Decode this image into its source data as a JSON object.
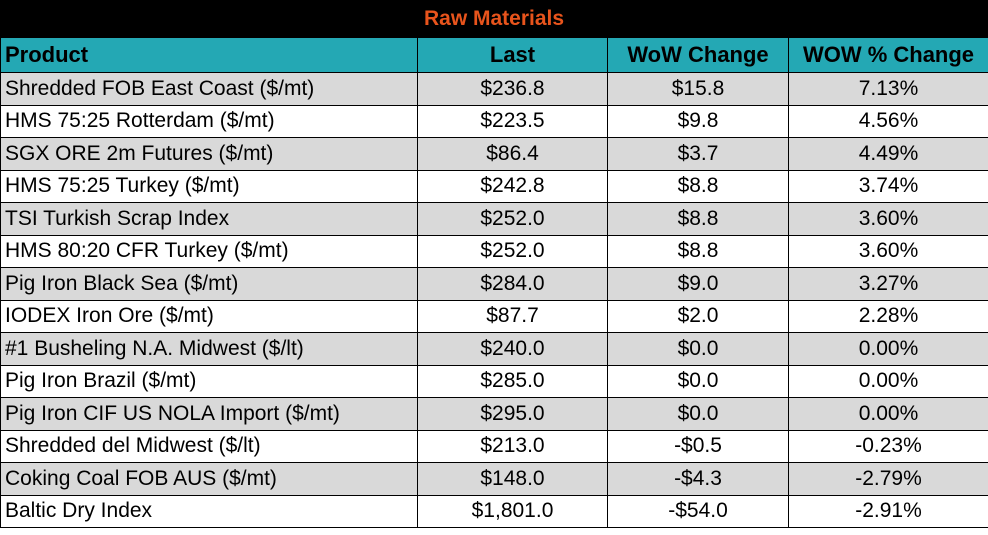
{
  "title": "Raw Materials",
  "columns": [
    "Product",
    "Last",
    "WoW Change",
    "WOW % Change"
  ],
  "rows": [
    {
      "product": "Shredded FOB East Coast ($/mt)",
      "last": "$236.8",
      "wow": "$15.8",
      "pct": "7.13%"
    },
    {
      "product": "HMS 75:25 Rotterdam ($/mt)",
      "last": "$223.5",
      "wow": "$9.8",
      "pct": "4.56%"
    },
    {
      "product": "SGX ORE 2m Futures ($/mt)",
      "last": "$86.4",
      "wow": "$3.7",
      "pct": "4.49%"
    },
    {
      "product": "HMS 75:25 Turkey ($/mt)",
      "last": "$242.8",
      "wow": "$8.8",
      "pct": "3.74%"
    },
    {
      "product": "TSI Turkish Scrap Index",
      "last": "$252.0",
      "wow": "$8.8",
      "pct": "3.60%"
    },
    {
      "product": "HMS 80:20 CFR Turkey ($/mt)",
      "last": "$252.0",
      "wow": "$8.8",
      "pct": "3.60%"
    },
    {
      "product": "Pig Iron Black Sea ($/mt)",
      "last": "$284.0",
      "wow": "$9.0",
      "pct": "3.27%"
    },
    {
      "product": "IODEX  Iron Ore ($/mt)",
      "last": "$87.7",
      "wow": "$2.0",
      "pct": "2.28%"
    },
    {
      "product": "#1 Busheling N.A. Midwest ($/lt)",
      "last": "$240.0",
      "wow": "$0.0",
      "pct": "0.00%"
    },
    {
      "product": "Pig Iron Brazil ($/mt)",
      "last": "$285.0",
      "wow": "$0.0",
      "pct": "0.00%"
    },
    {
      "product": "Pig Iron CIF US NOLA Import ($/mt)",
      "last": "$295.0",
      "wow": "$0.0",
      "pct": "0.00%"
    },
    {
      "product": "Shredded del  Midwest ($/lt)",
      "last": "$213.0",
      "wow": "-$0.5",
      "pct": "-0.23%"
    },
    {
      "product": "Coking Coal FOB AUS ($/mt)",
      "last": "$148.0",
      "wow": "-$4.3",
      "pct": "-2.79%"
    },
    {
      "product": "Baltic Dry Index",
      "last": "$1,801.0",
      "wow": "-$54.0",
      "pct": "-2.91%"
    }
  ],
  "colors": {
    "title_bg": "#000000",
    "title_text": "#e8541c",
    "header_bg": "#24a8b4",
    "row_shade": "#d9d9d9",
    "row_plain": "#ffffff"
  }
}
